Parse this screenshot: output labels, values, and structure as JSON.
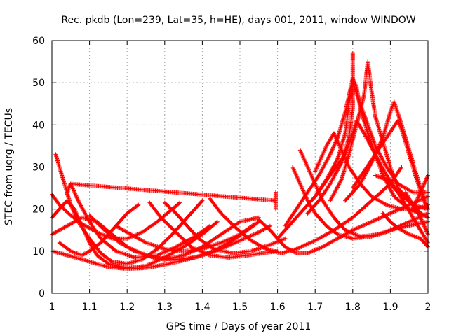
{
  "chart_data": {
    "type": "scatter",
    "title": "Rec. pkdb (Lon=239, Lat=35, h=HE), days 001, 2011, window WINDOW",
    "xlabel": "GPS time / Days of year 2011",
    "ylabel": "STEC from uqrg / TECUs",
    "xlim": [
      1,
      2
    ],
    "ylim": [
      0,
      60
    ],
    "x_ticks": [
      "1",
      "1.1",
      "1.2",
      "1.3",
      "1.4",
      "1.5",
      "1.6",
      "1.7",
      "1.8",
      "1.9",
      "2"
    ],
    "y_ticks": [
      "0",
      "10",
      "20",
      "30",
      "40",
      "50",
      "60"
    ],
    "grid": true,
    "marker": "+",
    "color": "#ff0000",
    "series": [
      {
        "points": [
          [
            1.0,
            10.0
          ],
          [
            1.05,
            8.8
          ],
          [
            1.1,
            7.5
          ],
          [
            1.15,
            6.2
          ],
          [
            1.2,
            5.8
          ],
          [
            1.25,
            6.0
          ],
          [
            1.3,
            6.8
          ],
          [
            1.35,
            7.8
          ],
          [
            1.4,
            9.0
          ],
          [
            1.45,
            10.5
          ],
          [
            1.5,
            12.5
          ],
          [
            1.55,
            14.5
          ],
          [
            1.58,
            16.0
          ]
        ]
      },
      {
        "points": [
          [
            1.0,
            14.0
          ],
          [
            1.04,
            16.0
          ],
          [
            1.08,
            18.0
          ],
          [
            1.12,
            17.0
          ],
          [
            1.16,
            14.0
          ],
          [
            1.2,
            11.0
          ],
          [
            1.25,
            9.0
          ],
          [
            1.3,
            8.0
          ],
          [
            1.35,
            9.0
          ],
          [
            1.4,
            11.0
          ],
          [
            1.45,
            14.0
          ],
          [
            1.5,
            17.0
          ],
          [
            1.55,
            18.0
          ]
        ]
      },
      {
        "points": [
          [
            1.0,
            18.0
          ],
          [
            1.02,
            20.0
          ],
          [
            1.04,
            22.0
          ],
          [
            1.06,
            20.0
          ],
          [
            1.08,
            16.0
          ],
          [
            1.1,
            12.0
          ],
          [
            1.12,
            9.0
          ],
          [
            1.15,
            7.0
          ],
          [
            1.2,
            6.0
          ],
          [
            1.25,
            6.5
          ],
          [
            1.3,
            8.5
          ],
          [
            1.35,
            11.0
          ],
          [
            1.4,
            14.0
          ],
          [
            1.44,
            17.0
          ]
        ]
      },
      {
        "points": [
          [
            1.01,
            33.0
          ],
          [
            1.02,
            30.0
          ],
          [
            1.03,
            27.0
          ],
          [
            1.04,
            24.0
          ],
          [
            1.05,
            21.0
          ],
          [
            1.07,
            17.0
          ],
          [
            1.1,
            13.0
          ],
          [
            1.13,
            9.5
          ],
          [
            1.16,
            7.5
          ],
          [
            1.2,
            7.0
          ],
          [
            1.24,
            8.0
          ],
          [
            1.28,
            10.5
          ],
          [
            1.32,
            14.0
          ],
          [
            1.36,
            18.0
          ],
          [
            1.4,
            22.0
          ]
        ]
      },
      {
        "points": [
          [
            1.0,
            23.5
          ],
          [
            1.02,
            21.0
          ],
          [
            1.05,
            18.5
          ],
          [
            1.08,
            16.5
          ],
          [
            1.12,
            14.5
          ],
          [
            1.16,
            13.0
          ],
          [
            1.2,
            13.0
          ],
          [
            1.24,
            14.5
          ],
          [
            1.28,
            17.0
          ],
          [
            1.32,
            20.0
          ],
          [
            1.34,
            21.5
          ]
        ]
      },
      {
        "points": [
          [
            1.02,
            12.0
          ],
          [
            1.05,
            10.0
          ],
          [
            1.08,
            9.0
          ],
          [
            1.1,
            10.0
          ],
          [
            1.13,
            12.0
          ],
          [
            1.16,
            15.0
          ],
          [
            1.2,
            19.0
          ],
          [
            1.23,
            21.0
          ]
        ]
      },
      {
        "points": [
          [
            1.05,
            26.0
          ],
          [
            1.07,
            22.0
          ],
          [
            1.1,
            17.0
          ],
          [
            1.13,
            13.0
          ],
          [
            1.17,
            10.0
          ],
          [
            1.22,
            8.5
          ],
          [
            1.28,
            9.0
          ],
          [
            1.33,
            11.0
          ],
          [
            1.38,
            13.5
          ],
          [
            1.42,
            16.0
          ]
        ]
      },
      {
        "points": [
          [
            1.1,
            18.5
          ],
          [
            1.14,
            15.0
          ],
          [
            1.18,
            12.0
          ],
          [
            1.22,
            10.0
          ],
          [
            1.27,
            8.5
          ],
          [
            1.33,
            8.0
          ],
          [
            1.38,
            8.5
          ],
          [
            1.43,
            10.0
          ],
          [
            1.48,
            12.5
          ],
          [
            1.52,
            15.0
          ],
          [
            1.55,
            17.0
          ]
        ]
      },
      {
        "points": [
          [
            1.17,
            16.0
          ],
          [
            1.21,
            14.0
          ],
          [
            1.25,
            12.0
          ],
          [
            1.3,
            10.5
          ],
          [
            1.35,
            10.0
          ],
          [
            1.4,
            10.5
          ],
          [
            1.45,
            12.0
          ],
          [
            1.5,
            14.0
          ],
          [
            1.54,
            16.5
          ]
        ]
      },
      {
        "points": [
          [
            1.26,
            21.5
          ],
          [
            1.29,
            18.0
          ],
          [
            1.33,
            14.5
          ],
          [
            1.37,
            11.0
          ],
          [
            1.42,
            9.0
          ],
          [
            1.47,
            8.5
          ],
          [
            1.52,
            9.0
          ],
          [
            1.56,
            9.5
          ],
          [
            1.6,
            10.0
          ]
        ]
      },
      {
        "points": [
          [
            1.42,
            22.5
          ],
          [
            1.45,
            19.0
          ],
          [
            1.49,
            15.5
          ],
          [
            1.53,
            12.5
          ],
          [
            1.57,
            10.5
          ],
          [
            1.61,
            9.5
          ],
          [
            1.65,
            10.5
          ],
          [
            1.7,
            12.5
          ],
          [
            1.75,
            15.0
          ],
          [
            1.8,
            18.0
          ],
          [
            1.85,
            22.0
          ],
          [
            1.9,
            26.0
          ],
          [
            1.93,
            30.0
          ]
        ]
      },
      {
        "points": [
          [
            1.3,
            21.5
          ],
          [
            1.33,
            19.0
          ],
          [
            1.36,
            16.0
          ],
          [
            1.39,
            13.0
          ],
          [
            1.43,
            10.5
          ],
          [
            1.48,
            9.5
          ],
          [
            1.53,
            10.0
          ],
          [
            1.58,
            11.5
          ],
          [
            1.62,
            13.0
          ]
        ]
      },
      {
        "points": [
          [
            1.55,
            17.5
          ],
          [
            1.58,
            15.0
          ],
          [
            1.6,
            13.0
          ],
          [
            1.62,
            11.0
          ],
          [
            1.65,
            9.5
          ],
          [
            1.68,
            9.5
          ],
          [
            1.72,
            11.0
          ],
          [
            1.76,
            13.0
          ],
          [
            1.8,
            15.0
          ],
          [
            1.85,
            17.0
          ],
          [
            1.9,
            19.0
          ],
          [
            1.95,
            21.0
          ],
          [
            2.0,
            23.0
          ]
        ]
      },
      {
        "points": [
          [
            1.64,
            30.0
          ],
          [
            1.66,
            26.0
          ],
          [
            1.68,
            22.0
          ],
          [
            1.7,
            19.0
          ],
          [
            1.73,
            16.0
          ],
          [
            1.76,
            14.0
          ],
          [
            1.8,
            13.0
          ],
          [
            1.85,
            13.5
          ],
          [
            1.9,
            15.0
          ],
          [
            1.95,
            17.0
          ],
          [
            2.0,
            19.0
          ]
        ]
      },
      {
        "points": [
          [
            1.66,
            34.0
          ],
          [
            1.68,
            30.0
          ],
          [
            1.7,
            26.0
          ],
          [
            1.72,
            22.0
          ],
          [
            1.75,
            18.0
          ],
          [
            1.78,
            15.0
          ],
          [
            1.82,
            13.5
          ],
          [
            1.87,
            14.0
          ],
          [
            1.92,
            15.5
          ],
          [
            1.97,
            16.5
          ],
          [
            2.0,
            17.0
          ]
        ]
      },
      {
        "points": [
          [
            1.6,
            13.0
          ],
          [
            1.63,
            16.0
          ],
          [
            1.66,
            19.0
          ],
          [
            1.7,
            23.0
          ],
          [
            1.74,
            28.0
          ],
          [
            1.78,
            33.0
          ],
          [
            1.8,
            38.0
          ],
          [
            1.81,
            41.0
          ],
          [
            1.83,
            38.0
          ],
          [
            1.86,
            33.0
          ],
          [
            1.89,
            28.0
          ],
          [
            1.92,
            24.0
          ],
          [
            1.96,
            21.0
          ],
          [
            2.0,
            20.0
          ]
        ]
      },
      {
        "points": [
          [
            1.62,
            16.0
          ],
          [
            1.65,
            20.0
          ],
          [
            1.68,
            24.0
          ],
          [
            1.71,
            28.0
          ],
          [
            1.74,
            33.0
          ],
          [
            1.76,
            37.0
          ],
          [
            1.78,
            43.0
          ],
          [
            1.8,
            51.0
          ],
          [
            1.81,
            49.0
          ],
          [
            1.82,
            44.0
          ],
          [
            1.84,
            38.0
          ],
          [
            1.86,
            33.0
          ],
          [
            1.88,
            28.0
          ],
          [
            1.91,
            23.0
          ],
          [
            1.95,
            20.0
          ],
          [
            2.0,
            18.0
          ]
        ]
      },
      {
        "points": [
          [
            1.68,
            19.0
          ],
          [
            1.71,
            22.0
          ],
          [
            1.74,
            26.0
          ],
          [
            1.77,
            31.0
          ],
          [
            1.79,
            37.0
          ],
          [
            1.8,
            44.0
          ],
          [
            1.8,
            50.0
          ],
          [
            1.8,
            57.0
          ]
        ]
      },
      {
        "points": [
          [
            1.7,
            29.0
          ],
          [
            1.73,
            35.0
          ],
          [
            1.75,
            38.0
          ],
          [
            1.77,
            34.0
          ],
          [
            1.79,
            30.0
          ],
          [
            1.82,
            26.0
          ],
          [
            1.85,
            23.0
          ],
          [
            1.89,
            21.0
          ],
          [
            1.93,
            20.0
          ],
          [
            1.97,
            20.0
          ],
          [
            2.0,
            21.0
          ]
        ]
      },
      {
        "points": [
          [
            1.74,
            22.0
          ],
          [
            1.77,
            27.0
          ],
          [
            1.79,
            33.0
          ],
          [
            1.81,
            40.0
          ],
          [
            1.83,
            47.0
          ],
          [
            1.84,
            55.0
          ],
          [
            1.85,
            48.0
          ],
          [
            1.86,
            42.0
          ],
          [
            1.88,
            36.0
          ],
          [
            1.9,
            30.0
          ],
          [
            1.92,
            25.0
          ],
          [
            1.95,
            22.0
          ],
          [
            1.98,
            19.0
          ],
          [
            2.0,
            18.0
          ]
        ]
      },
      {
        "points": [
          [
            1.7,
            23.0
          ],
          [
            1.73,
            27.0
          ],
          [
            1.76,
            32.0
          ],
          [
            1.78,
            38.0
          ],
          [
            1.79,
            45.0
          ],
          [
            1.8,
            50.0
          ],
          [
            1.82,
            45.0
          ],
          [
            1.84,
            40.0
          ],
          [
            1.86,
            35.0
          ],
          [
            1.89,
            30.0
          ],
          [
            1.92,
            26.0
          ],
          [
            1.96,
            24.0
          ],
          [
            2.0,
            24.0
          ]
        ]
      },
      {
        "points": [
          [
            1.78,
            22.0
          ],
          [
            1.82,
            26.0
          ],
          [
            1.85,
            31.0
          ],
          [
            1.88,
            37.0
          ],
          [
            1.9,
            43.0
          ],
          [
            1.91,
            45.5
          ],
          [
            1.93,
            40.0
          ],
          [
            1.95,
            34.0
          ],
          [
            1.97,
            28.0
          ],
          [
            1.99,
            22.0
          ],
          [
            2.0,
            20.0
          ]
        ]
      },
      {
        "points": [
          [
            1.8,
            25.0
          ],
          [
            1.83,
            29.0
          ],
          [
            1.86,
            33.0
          ],
          [
            1.89,
            37.0
          ],
          [
            1.92,
            41.0
          ],
          [
            1.93,
            39.0
          ],
          [
            1.95,
            33.0
          ],
          [
            1.97,
            27.0
          ],
          [
            1.99,
            22.0
          ],
          [
            2.0,
            20.0
          ]
        ]
      },
      {
        "points": [
          [
            1.86,
            28.0
          ],
          [
            1.89,
            27.0
          ],
          [
            1.92,
            24.0
          ],
          [
            1.94,
            21.0
          ],
          [
            1.96,
            18.0
          ],
          [
            1.98,
            15.0
          ],
          [
            2.0,
            12.0
          ]
        ]
      },
      {
        "points": [
          [
            1.88,
            19.0
          ],
          [
            1.9,
            17.0
          ],
          [
            1.92,
            15.5
          ],
          [
            1.95,
            14.0
          ],
          [
            1.98,
            13.0
          ],
          [
            2.0,
            11.0
          ]
        ]
      },
      {
        "points": [
          [
            1.94,
            24.0
          ],
          [
            1.96,
            21.0
          ],
          [
            1.98,
            18.0
          ],
          [
            2.0,
            14.0
          ]
        ]
      },
      {
        "points": [
          [
            1.96,
            20.0
          ],
          [
            1.97,
            22.0
          ],
          [
            1.98,
            24.0
          ],
          [
            1.99,
            26.0
          ],
          [
            2.0,
            28.0
          ]
        ]
      },
      {
        "points": [
          [
            1.04,
            23.5
          ],
          [
            1.045,
            25.0
          ],
          [
            1.05,
            26.0
          ],
          [
            1.595,
            22.0
          ],
          [
            1.595,
            24.0
          ],
          [
            1.595,
            20.0
          ]
        ]
      }
    ]
  }
}
